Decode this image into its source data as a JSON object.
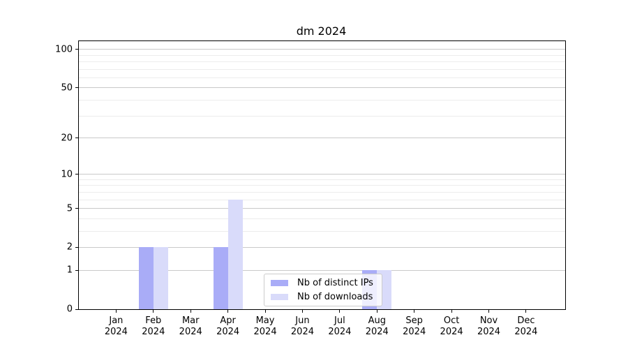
{
  "figure": {
    "background": "#ffffff"
  },
  "chart_data": {
    "type": "bar",
    "title": "dm 2024",
    "categories": [
      "Jan",
      "Feb",
      "Mar",
      "Apr",
      "May",
      "Jun",
      "Jul",
      "Aug",
      "Sep",
      "Oct",
      "Nov",
      "Dec"
    ],
    "year_label": "2024",
    "series": [
      {
        "name": "Nb of distinct IPs",
        "color": "#a9acf7",
        "values": [
          0,
          2,
          0,
          2,
          0,
          0,
          0,
          1,
          0,
          0,
          0,
          0
        ]
      },
      {
        "name": "Nb of downloads",
        "color": "#d9dbfa",
        "values": [
          0,
          2,
          0,
          6,
          0,
          0,
          0,
          1,
          0,
          0,
          0,
          0
        ]
      }
    ],
    "xlabel": "",
    "ylabel": "",
    "yscale": "log1p",
    "ylim": [
      0,
      116
    ],
    "yticks": [
      0,
      1,
      2,
      5,
      10,
      20,
      50,
      100
    ],
    "yticks_minor": [
      3,
      4,
      6,
      7,
      8,
      9,
      30,
      40,
      60,
      70,
      80,
      90
    ],
    "grid": "horizontal",
    "legend_position": "lower center",
    "colors": {
      "spine": "#000000",
      "grid_major": "#c9c9c9",
      "grid_minor": "#ececec",
      "text": "#000000",
      "legend_border": "#cccccc"
    }
  }
}
